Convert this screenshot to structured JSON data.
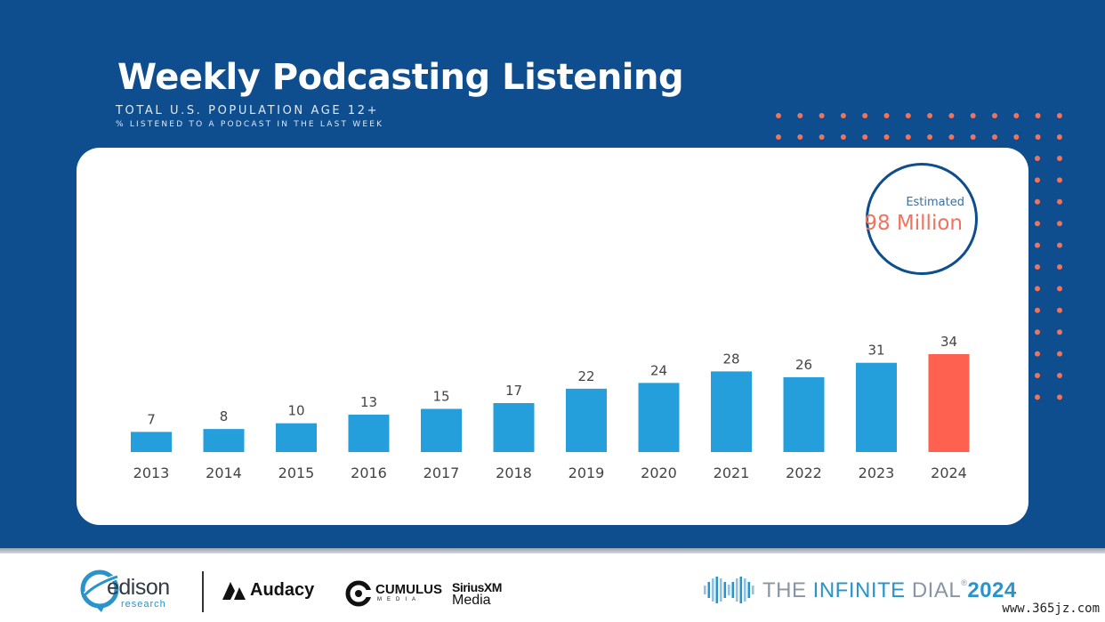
{
  "slide": {
    "title": "Weekly Podcasting Listening",
    "subtitle": "TOTAL U.S. POPULATION AGE 12+",
    "subnote": "% LISTENED TO A PODCAST IN THE LAST WEEK",
    "background": "#0e4e8e",
    "dot_color": "#f2735b"
  },
  "badge": {
    "label": "Estimated",
    "value": "98 Million"
  },
  "chart_data": {
    "type": "bar",
    "title": "Weekly Podcasting Listening",
    "subtitle": "TOTAL U.S. POPULATION AGE 12+",
    "ylabel": "% LISTENED TO A PODCAST IN THE LAST WEEK",
    "xlabel": "",
    "categories": [
      "2013",
      "2014",
      "2015",
      "2016",
      "2017",
      "2018",
      "2019",
      "2020",
      "2021",
      "2022",
      "2023",
      "2024"
    ],
    "values": [
      7,
      8,
      10,
      13,
      15,
      17,
      22,
      24,
      28,
      26,
      31,
      34
    ],
    "ylim": [
      0,
      34
    ],
    "grid": false,
    "data_labels": true,
    "bar_color": "#259fdb",
    "highlight_color": "#ff6150",
    "highlight_category": "2024"
  },
  "footer": {
    "edison_name": "edison",
    "edison_sub": "research",
    "audacy": "Audacy",
    "cumulus": "CUMULUS",
    "cumulus_sub": "MEDIA",
    "siriusxm": "SiriusXM",
    "siriusxm_sub": "Media",
    "dial_the": "THE ",
    "dial_infinite": "INFINITE ",
    "dial_dial": "DIAL",
    "dial_reg": "®",
    "dial_year": "2024"
  },
  "watermark": "www.365jz.com"
}
